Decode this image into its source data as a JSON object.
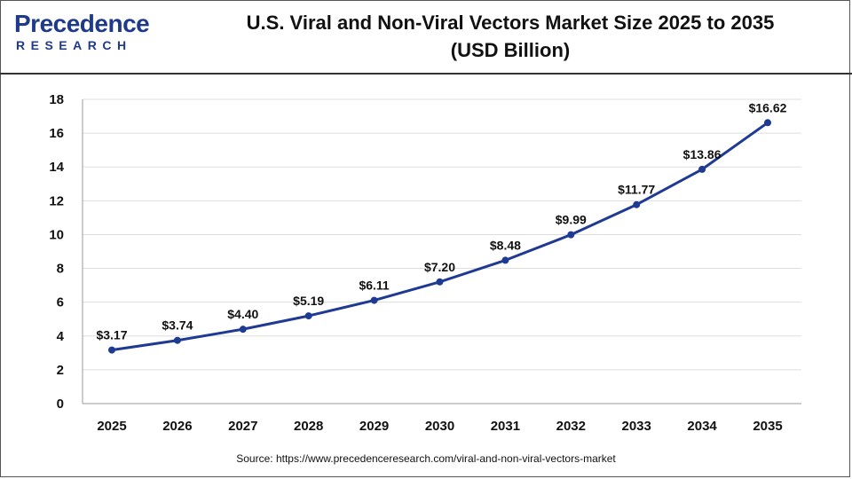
{
  "brand": {
    "name": "Precedence",
    "sub": "RESEARCH"
  },
  "title_line1": "U.S. Viral and Non-Viral Vectors Market Size 2025 to 2035",
  "title_line2": "(USD Billion)",
  "source": "Source: https://www.precedenceresearch.com/viral-and-non-viral-vectors-market",
  "colors": {
    "line": "#1f3a93",
    "brand": "#1f3a8a",
    "grid": "#dddddd"
  },
  "chart_data": {
    "type": "line",
    "title": "U.S. Viral and Non-Viral Vectors Market Size 2025 to 2035 (USD Billion)",
    "xlabel": "",
    "ylabel": "",
    "categories": [
      "2025",
      "2026",
      "2027",
      "2028",
      "2029",
      "2030",
      "2031",
      "2032",
      "2033",
      "2034",
      "2035"
    ],
    "values": [
      3.17,
      3.74,
      4.4,
      5.19,
      6.11,
      7.2,
      8.48,
      9.99,
      11.77,
      13.86,
      16.62
    ],
    "data_labels": [
      "$3.17",
      "$3.74",
      "$4.40",
      "$5.19",
      "$6.11",
      "$7.20",
      "$8.48",
      "$9.99",
      "$11.77",
      "$13.86",
      "$16.62"
    ],
    "ylim": [
      0,
      18
    ],
    "yticks": [
      0,
      2,
      4,
      6,
      8,
      10,
      12,
      14,
      16,
      18
    ],
    "grid": true,
    "legend": "none"
  }
}
